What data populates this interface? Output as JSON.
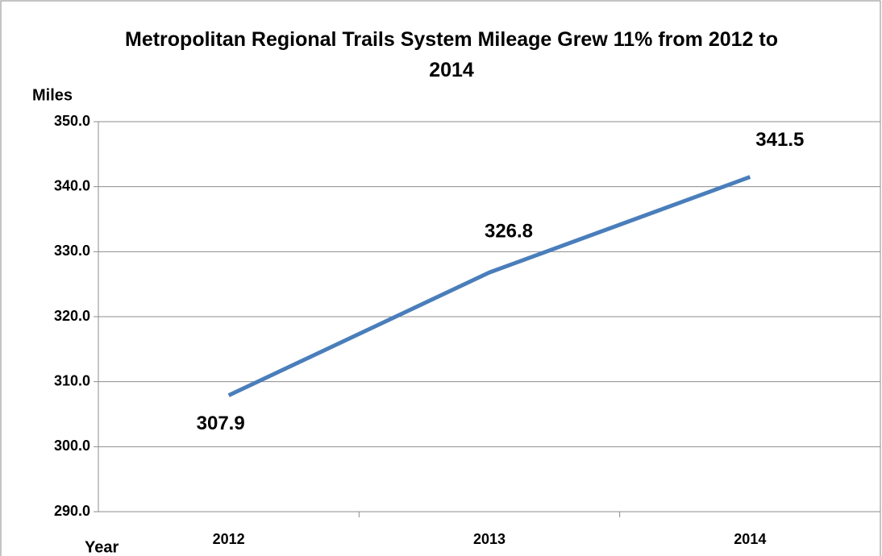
{
  "chart_data": {
    "type": "line",
    "title": "Metropolitan Regional Trails System Mileage Grew 11% from 2012 to 2014",
    "y_label": "Miles",
    "x_label": "Year",
    "categories": [
      "2012",
      "2013",
      "2014"
    ],
    "series": [
      {
        "name": "Miles",
        "color": "#4a7ebb",
        "values": [
          307.9,
          326.8,
          341.5
        ]
      }
    ],
    "ylim": [
      290,
      350
    ],
    "yticks": [
      {
        "value": 290,
        "label": "290.0"
      },
      {
        "value": 300,
        "label": "300.0"
      },
      {
        "value": 310,
        "label": "310.0"
      },
      {
        "value": 320,
        "label": "320.0"
      },
      {
        "value": 330,
        "label": "330.0"
      },
      {
        "value": 340,
        "label": "340.0"
      },
      {
        "value": 350,
        "label": "350.0"
      }
    ],
    "grid": true,
    "legend": false
  }
}
